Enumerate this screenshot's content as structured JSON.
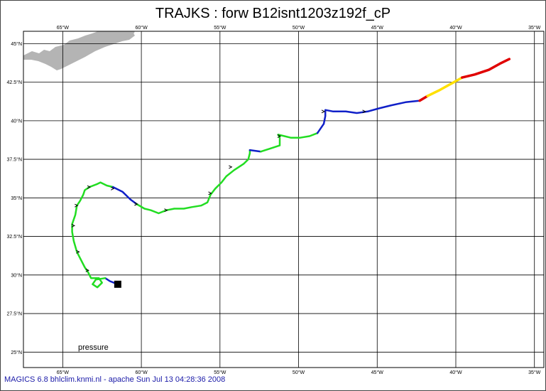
{
  "title": "TRAJKS : forw B12isnt1203z192f_cP",
  "footer": "MAGICS 6.8 bhlclim.knmi.nl - apache Sun Jul 13 04:28:36 2008",
  "legend_label": "pressure",
  "colors": {
    "low": "#22dd22",
    "mid": "#1020c8",
    "high": "#ffe000",
    "top": "#e00000",
    "land": "#b4b4b4"
  },
  "lon_ticks": [
    "65°W",
    "60°W",
    "55°W",
    "50°W",
    "45°W",
    "40°W",
    "35°W"
  ],
  "lat_ticks": [
    "45°N",
    "42.5°N",
    "40°N",
    "37.5°N",
    "35°N",
    "32.5°N",
    "30°N",
    "27.5°N",
    "25°N"
  ],
  "map_extent": {
    "lon_min": -67.5,
    "lon_max": -34.4,
    "lat_min": 24.0,
    "lat_max": 45.8
  },
  "trajectory": [
    {
      "color": "mid",
      "pts": [
        [
          -61.5,
          29.4
        ],
        [
          -62.0,
          29.6
        ],
        [
          -62.3,
          29.8
        ]
      ]
    },
    {
      "color": "low",
      "pts": [
        [
          -62.3,
          29.8
        ],
        [
          -62.9,
          29.7
        ],
        [
          -63.1,
          29.4
        ],
        [
          -62.8,
          29.2
        ],
        [
          -62.5,
          29.5
        ],
        [
          -62.7,
          29.8
        ],
        [
          -63.2,
          29.8
        ],
        [
          -63.4,
          30.2
        ],
        [
          -63.6,
          30.5
        ],
        [
          -63.9,
          31.1
        ],
        [
          -64.1,
          31.5
        ],
        [
          -64.3,
          32.2
        ],
        [
          -64.4,
          32.8
        ],
        [
          -64.4,
          33.3
        ],
        [
          -64.2,
          33.9
        ],
        [
          -64.1,
          34.5
        ],
        [
          -63.9,
          34.8
        ],
        [
          -63.7,
          35.2
        ],
        [
          -63.6,
          35.5
        ],
        [
          -63.3,
          35.7
        ],
        [
          -62.8,
          35.9
        ],
        [
          -62.6,
          36.0
        ],
        [
          -62.2,
          35.8
        ],
        [
          -61.8,
          35.7
        ]
      ]
    },
    {
      "color": "mid",
      "pts": [
        [
          -61.8,
          35.7
        ],
        [
          -61.2,
          35.4
        ],
        [
          -60.7,
          34.9
        ],
        [
          -60.3,
          34.6
        ]
      ]
    },
    {
      "color": "low",
      "pts": [
        [
          -60.3,
          34.6
        ],
        [
          -59.8,
          34.3
        ],
        [
          -59.4,
          34.2
        ],
        [
          -58.9,
          34.0
        ],
        [
          -58.4,
          34.2
        ],
        [
          -57.9,
          34.3
        ],
        [
          -57.3,
          34.3
        ],
        [
          -56.8,
          34.4
        ],
        [
          -56.2,
          34.5
        ],
        [
          -55.8,
          34.7
        ],
        [
          -55.6,
          35.2
        ],
        [
          -55.3,
          35.6
        ],
        [
          -54.9,
          36.0
        ],
        [
          -54.6,
          36.4
        ],
        [
          -54.1,
          36.8
        ],
        [
          -53.5,
          37.2
        ],
        [
          -53.2,
          37.5
        ],
        [
          -53.1,
          37.9
        ],
        [
          -53.1,
          38.1
        ]
      ]
    },
    {
      "color": "mid",
      "pts": [
        [
          -53.1,
          38.1
        ],
        [
          -52.4,
          38.0
        ]
      ]
    },
    {
      "color": "low",
      "pts": [
        [
          -52.4,
          38.0
        ],
        [
          -51.8,
          38.2
        ],
        [
          -51.2,
          38.4
        ],
        [
          -51.2,
          38.9
        ],
        [
          -51.3,
          39.1
        ],
        [
          -50.9,
          39.0
        ],
        [
          -50.5,
          38.9
        ],
        [
          -49.9,
          38.9
        ],
        [
          -49.3,
          39.0
        ],
        [
          -48.8,
          39.2
        ]
      ]
    },
    {
      "color": "mid",
      "pts": [
        [
          -48.8,
          39.2
        ],
        [
          -48.4,
          39.8
        ],
        [
          -48.3,
          40.3
        ],
        [
          -48.3,
          40.7
        ],
        [
          -47.8,
          40.6
        ],
        [
          -47.0,
          40.6
        ],
        [
          -46.3,
          40.5
        ],
        [
          -45.6,
          40.6
        ],
        [
          -44.9,
          40.8
        ],
        [
          -44.1,
          41.0
        ],
        [
          -43.2,
          41.2
        ],
        [
          -42.3,
          41.3
        ]
      ]
    },
    {
      "color": "top",
      "pts": [
        [
          -42.3,
          41.3
        ],
        [
          -41.8,
          41.6
        ]
      ]
    },
    {
      "color": "high",
      "pts": [
        [
          -41.8,
          41.6
        ],
        [
          -41.0,
          42.0
        ],
        [
          -40.3,
          42.4
        ],
        [
          -39.6,
          42.8
        ]
      ]
    },
    {
      "color": "top",
      "pts": [
        [
          -39.6,
          42.8
        ],
        [
          -38.8,
          43.0
        ],
        [
          -37.9,
          43.3
        ],
        [
          -37.2,
          43.7
        ],
        [
          -36.6,
          44.0
        ]
      ]
    }
  ],
  "arrow_markers": [
    [
      -63.3,
      35.7
    ],
    [
      -61.8,
      35.6
    ],
    [
      -60.3,
      34.6
    ],
    [
      -58.4,
      34.2
    ],
    [
      -55.6,
      35.3
    ],
    [
      -54.3,
      37.0
    ],
    [
      -51.2,
      39.0
    ],
    [
      -48.4,
      40.6
    ],
    [
      -45.8,
      40.6
    ],
    [
      -64.1,
      34.5
    ],
    [
      -64.3,
      33.2
    ],
    [
      -64.0,
      31.5
    ],
    [
      -63.4,
      30.3
    ]
  ],
  "start_marker": [
    -61.5,
    29.4
  ]
}
